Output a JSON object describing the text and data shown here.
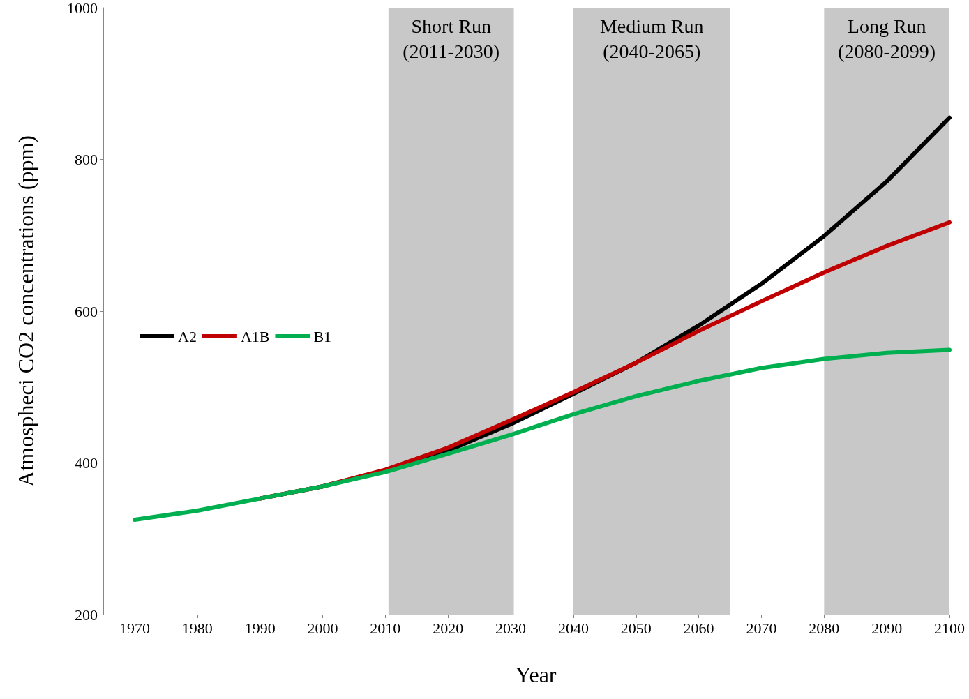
{
  "chart_data": {
    "type": "line",
    "xlabel": "Year",
    "ylabel": "Atmospheci CO2 concentrations (ppm)",
    "x": [
      1970,
      1980,
      1990,
      2000,
      2010,
      2020,
      2030,
      2040,
      2050,
      2060,
      2070,
      2080,
      2090,
      2100
    ],
    "series": [
      {
        "name": "A2",
        "color": "#000000",
        "values": [
          null,
          null,
          353,
          369,
          390,
          416,
          451,
          491,
          532,
          581,
          636,
          699,
          771,
          855
        ]
      },
      {
        "name": "A1B",
        "color": "#c00000",
        "values": [
          null,
          null,
          353,
          369,
          391,
          420,
          456,
          493,
          532,
          574,
          613,
          651,
          686,
          717
        ]
      },
      {
        "name": "B1",
        "color": "#00b050",
        "values": [
          325,
          337,
          353,
          369,
          388,
          412,
          437,
          464,
          488,
          508,
          525,
          537,
          545,
          549
        ]
      }
    ],
    "xlim": [
      1965,
      2103
    ],
    "xticks": [
      1970,
      1980,
      1990,
      2000,
      2010,
      2020,
      2030,
      2040,
      2050,
      2060,
      2070,
      2080,
      2090,
      2100
    ],
    "ylim": [
      200,
      1000
    ],
    "yticks": [
      200,
      400,
      600,
      800,
      1000
    ],
    "bands": [
      {
        "axis": "x",
        "from": 2010.5,
        "to": 2030.5,
        "label": "Short Run\n(2011-2030)",
        "color": "#c8c8c8"
      },
      {
        "axis": "x",
        "from": 2040,
        "to": 2065,
        "label": "Medium Run\n(2040-2065)",
        "color": "#c8c8c8"
      },
      {
        "axis": "x",
        "from": 2080,
        "to": 2100,
        "label": "Long Run\n(2080-2099)",
        "color": "#c8c8c8"
      }
    ],
    "grid": false,
    "legend": "left",
    "marker": "none",
    "line_style": "solid"
  }
}
